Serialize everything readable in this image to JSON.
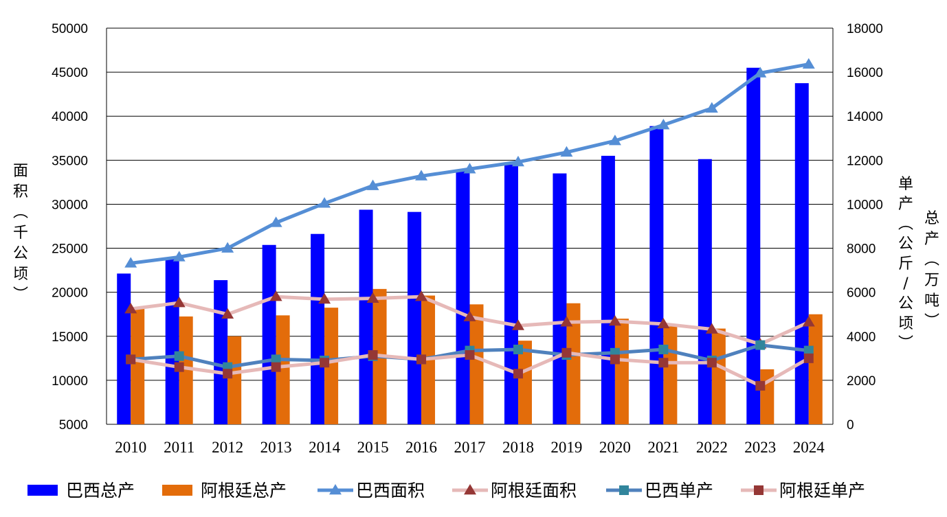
{
  "chart_data": {
    "type": "bar",
    "categories": [
      "2010",
      "2011",
      "2012",
      "2013",
      "2014",
      "2015",
      "2016",
      "2017",
      "2018",
      "2019",
      "2020",
      "2021",
      "2022",
      "2023",
      "2024"
    ],
    "left_axis": {
      "title": "面积（千公顷）",
      "range": [
        5000,
        50000
      ],
      "ticks": [
        "5000",
        "10000",
        "15000",
        "20000",
        "25000",
        "30000",
        "35000",
        "40000",
        "45000",
        "50000"
      ]
    },
    "right_axis": {
      "title_unit": "单产（公斤/公顷）",
      "title_total": "总产（万吨）",
      "range": [
        0,
        18000
      ],
      "ticks": [
        "0",
        "2000",
        "4000",
        "6000",
        "8000",
        "10000",
        "12000",
        "14000",
        "16000",
        "18000"
      ]
    },
    "grid": true,
    "legend_position": "bottom",
    "series": [
      {
        "name": "巴西总产",
        "kind": "bar",
        "axis": "right",
        "color": "#0000FF",
        "values": [
          6850,
          7500,
          6550,
          8150,
          8650,
          9750,
          9650,
          11500,
          11800,
          11400,
          12200,
          13550,
          12050,
          16200,
          15500
        ]
      },
      {
        "name": "阿根廷总产",
        "kind": "bar",
        "axis": "right",
        "color": "#E36C0A",
        "values": [
          5250,
          4900,
          4000,
          4950,
          5300,
          6150,
          5850,
          5450,
          3800,
          5500,
          4800,
          4450,
          4350,
          2500,
          5000
        ]
      },
      {
        "name": "巴西面积",
        "kind": "line",
        "marker": "triangle",
        "axis": "left",
        "color": "#558ED5",
        "marker_color": "#558ED5",
        "values": [
          23300,
          24000,
          25000,
          27900,
          30100,
          32100,
          33200,
          34000,
          34800,
          35900,
          37200,
          39000,
          40900,
          44900,
          45900
        ]
      },
      {
        "name": "阿根廷面积",
        "kind": "line",
        "marker": "triangle",
        "axis": "left",
        "color": "#E6B9B8",
        "marker_color": "#953735",
        "values": [
          18100,
          18800,
          17500,
          19500,
          19200,
          19300,
          19500,
          17200,
          16200,
          16600,
          16700,
          16400,
          15800,
          14100,
          16600
        ]
      },
      {
        "name": "巴西单产",
        "kind": "line",
        "marker": "square",
        "axis": "right",
        "color": "#4F81BD",
        "marker_color": "#31859C",
        "values": [
          2950,
          3100,
          2600,
          2950,
          2900,
          3100,
          2950,
          3350,
          3400,
          3150,
          3250,
          3400,
          2900,
          3600,
          3350
        ]
      },
      {
        "name": "阿根廷单产",
        "kind": "line",
        "marker": "square",
        "axis": "right",
        "color": "#E6B9B8",
        "marker_color": "#953735",
        "values": [
          2950,
          2600,
          2300,
          2600,
          2800,
          3150,
          2950,
          3150,
          2300,
          3250,
          2950,
          2800,
          2800,
          1750,
          3000
        ]
      }
    ]
  }
}
